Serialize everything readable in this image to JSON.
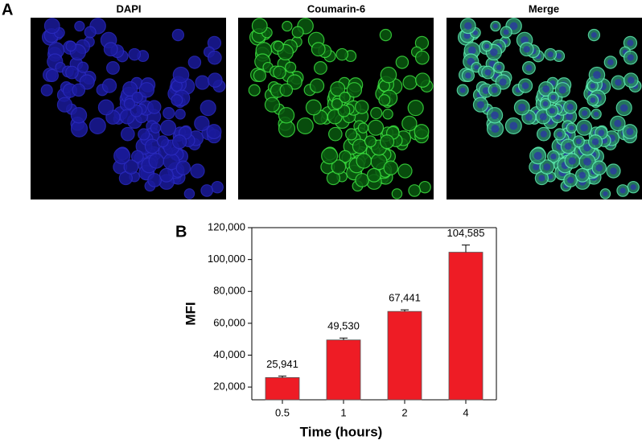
{
  "figure": {
    "panel_a_label": "A",
    "panel_b_label": "B",
    "images": [
      {
        "title": "DAPI"
      },
      {
        "title": "Coumarin-6"
      },
      {
        "title": "Merge"
      }
    ]
  },
  "chart_data": {
    "type": "bar",
    "xlabel": "Time (hours)",
    "ylabel": "MFI",
    "categories": [
      "0.5",
      "1",
      "2",
      "4"
    ],
    "values": [
      25941,
      49530,
      67441,
      104585
    ],
    "value_labels": [
      "25,941",
      "49,530",
      "67,441",
      "104,585"
    ],
    "errors": [
      900,
      1200,
      1000,
      4500
    ],
    "color": "#ee1c25",
    "ylim": [
      12000,
      120000
    ],
    "yticks": [
      {
        "value": 20000,
        "label": "20,000"
      },
      {
        "value": 40000,
        "label": "40,000"
      },
      {
        "value": 60000,
        "label": "60,000"
      },
      {
        "value": 80000,
        "label": "80,000"
      },
      {
        "value": 100000,
        "label": "100,000"
      },
      {
        "value": 120000,
        "label": "120,000"
      }
    ]
  }
}
